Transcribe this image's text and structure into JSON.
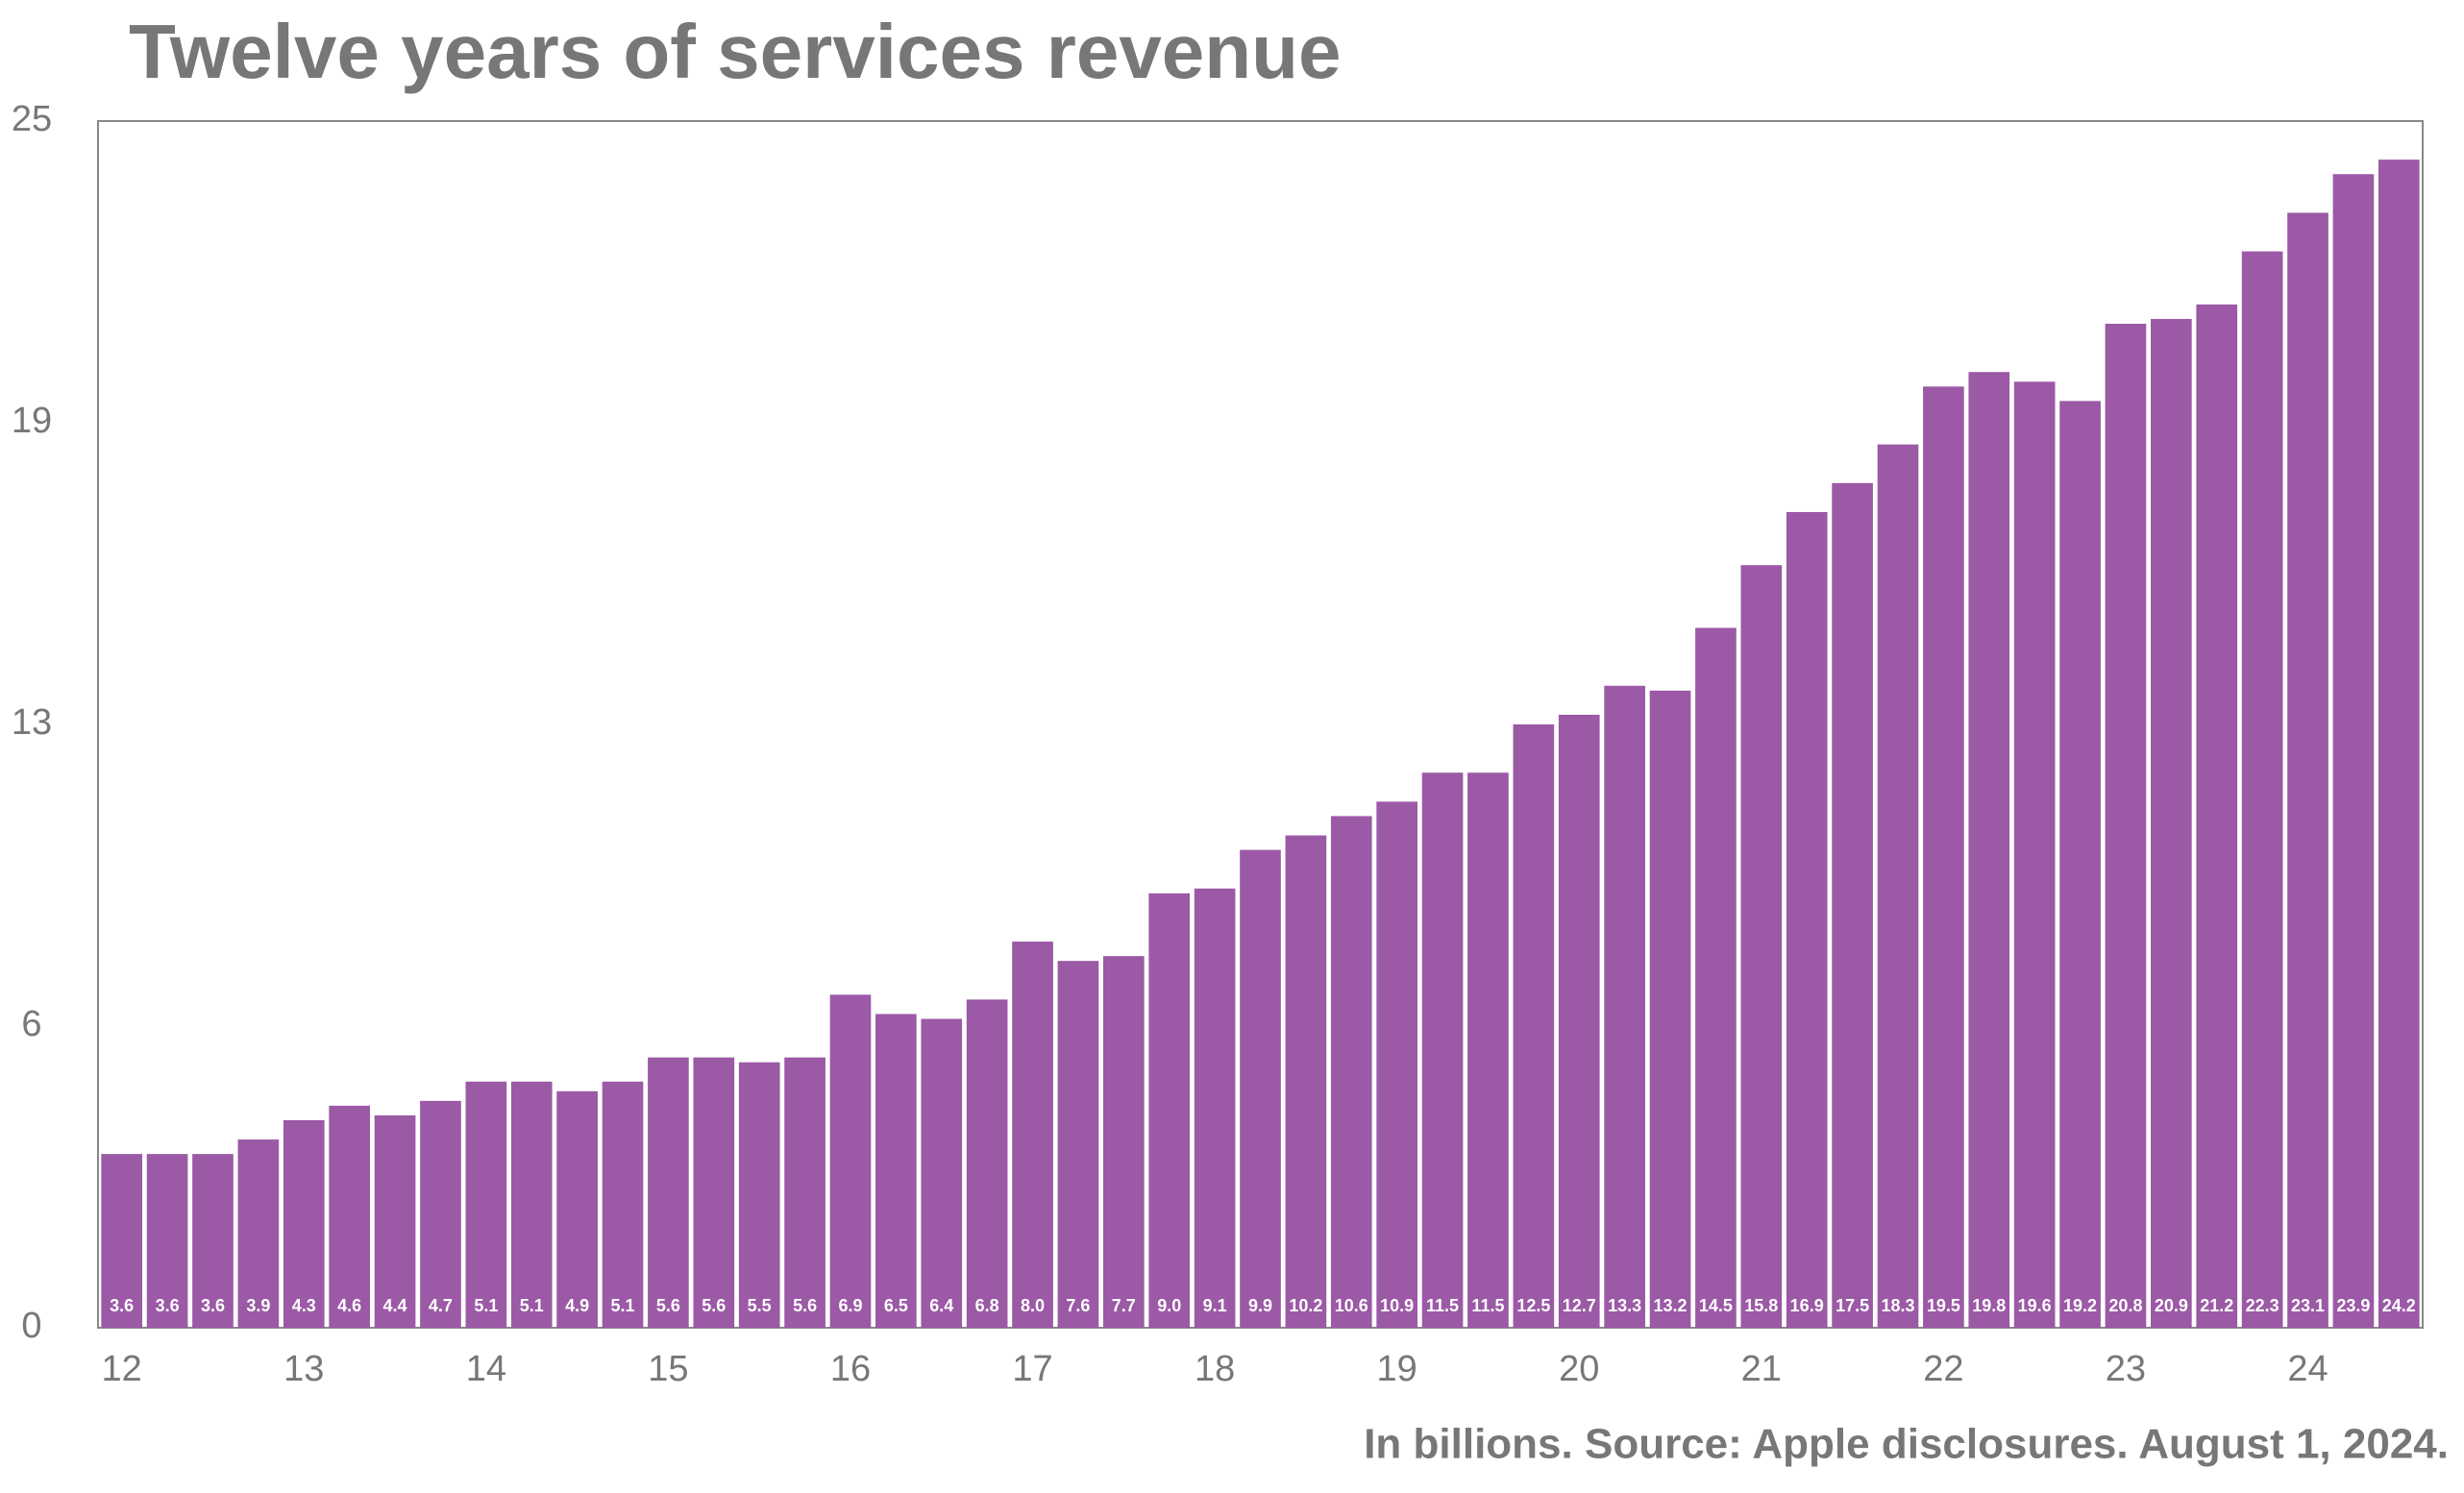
{
  "chart_data": {
    "type": "bar",
    "title": "Twelve years of services revenue",
    "note": "In billions. Source: Apple disclosures. August 1, 2024.",
    "color": "#9b59a6",
    "categories": [
      "12",
      null,
      null,
      null,
      "13",
      null,
      null,
      null,
      "14",
      null,
      null,
      null,
      "15",
      null,
      null,
      null,
      "16",
      null,
      null,
      null,
      "17",
      null,
      null,
      null,
      "18",
      null,
      null,
      null,
      "19",
      null,
      null,
      null,
      "20",
      null,
      null,
      null,
      "21",
      null,
      null,
      null,
      "22",
      null,
      null,
      null,
      "23",
      null,
      null,
      null,
      "24",
      null,
      null
    ],
    "values": [
      3.6,
      3.6,
      3.6,
      3.9,
      4.3,
      4.6,
      4.4,
      4.7,
      5.1,
      5.1,
      4.9,
      5.1,
      5.6,
      5.6,
      5.5,
      5.6,
      6.9,
      6.5,
      6.4,
      6.8,
      8.0,
      7.6,
      7.7,
      9.0,
      9.1,
      9.9,
      10.2,
      10.6,
      10.9,
      11.5,
      11.5,
      12.5,
      12.7,
      13.3,
      13.2,
      14.5,
      15.8,
      16.9,
      17.5,
      18.3,
      19.5,
      19.8,
      19.6,
      19.2,
      20.8,
      20.9,
      21.2,
      22.3,
      23.1,
      23.9,
      24.2
    ],
    "value_labels": [
      "3.6",
      "3.6",
      "3.6",
      "3.9",
      "4.3",
      "4.6",
      "4.4",
      "4.7",
      "5.1",
      "5.1",
      "4.9",
      "5.1",
      "5.6",
      "5.6",
      "5.5",
      "5.6",
      "6.9",
      "6.5",
      "6.4",
      "6.8",
      "8.0",
      "7.6",
      "7.7",
      "9.0",
      "9.1",
      "9.9",
      "10.2",
      "10.6",
      "10.9",
      "11.5",
      "11.5",
      "12.5",
      "12.7",
      "13.3",
      "13.2",
      "14.5",
      "15.8",
      "16.9",
      "17.5",
      "18.3",
      "19.5",
      "19.8",
      "19.6",
      "19.2",
      "20.8",
      "20.9",
      "21.2",
      "22.3",
      "23.1",
      "23.9",
      "24.2"
    ],
    "ylim": [
      0,
      25
    ],
    "yticks": [
      0,
      {
        "value": 6.25,
        "label": "6"
      },
      {
        "value": 12.5,
        "label": "13"
      },
      {
        "value": 18.75,
        "label": "19"
      },
      25
    ],
    "grid": false
  }
}
